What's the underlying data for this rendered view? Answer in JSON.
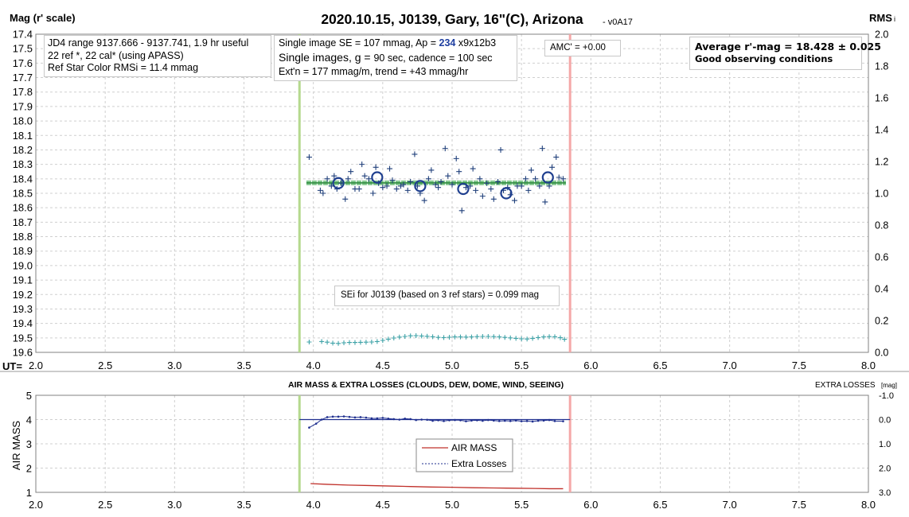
{
  "header": {
    "title": "2020.10.15, J0139, Gary, 16\"(C), Arizona",
    "version": "- v0A17",
    "left_axis_label": "Mag (r' scale)",
    "right_axis_label": "RMS",
    "right_axis_label_sub": "i"
  },
  "info_left": {
    "line1": "JD4 range 9137.666 - 9137.741, 1.9 hr useful",
    "line2": "22 ref *, 22 cal* (using APASS)",
    "line3": "Ref Star Color RMSi = 11.4 mmag"
  },
  "info_center": {
    "line1_pre": "Single image SE = 107 mmag, Ap = ",
    "line1_ap": "234",
    "line1_post": " x9x12b3",
    "line2_pre": "Single images, g = ",
    "line2_post": "90 sec, cadence = 100 sec",
    "line3": "Ext'n = 177 mmag/m, trend = +43 mmag/hr"
  },
  "amc_label": "AMC' = +0.00",
  "average": {
    "line1": "Average r'-mag =  18.428 ± 0.025",
    "line2": "Good observing conditions"
  },
  "sei_label": "SEi for J0139 (based on 3 ref stars) = 0.099 mag",
  "ut_label": "UT=",
  "lower": {
    "title": "AIR MASS & EXTRA LOSSES (CLOUDS, DEW, DOME, WIND, SEEING)",
    "left_label": "AIR MASS",
    "right_label": "EXTRA LOSSES",
    "right_label_unit": "[mag]",
    "legend": [
      "AIR MASS",
      "Extra Losses"
    ]
  },
  "chart_data": [
    {
      "type": "scatter",
      "name": "upper-light-curve",
      "x_range": [
        2.0,
        8.0
      ],
      "x_ticks": [
        "2.0",
        "2.5",
        "3.0",
        "3.5",
        "4.0",
        "4.5",
        "5.0",
        "5.5",
        "6.0",
        "6.5",
        "7.0",
        "7.5",
        "8.0"
      ],
      "y_range": [
        17.4,
        19.6
      ],
      "y_reversed": true,
      "y_ticks": [
        "17.4",
        "17.5",
        "17.6",
        "17.7",
        "17.8",
        "17.9",
        "18.0",
        "18.1",
        "18.2",
        "18.3",
        "18.4",
        "18.5",
        "18.6",
        "18.7",
        "18.8",
        "18.9",
        "19.0",
        "19.1",
        "19.2",
        "19.3",
        "19.4",
        "19.5",
        "19.6"
      ],
      "y2_range": [
        0.0,
        2.0
      ],
      "y2_ticks": [
        "0.0",
        "0.2",
        "0.4",
        "0.6",
        "0.8",
        "1.0",
        "1.2",
        "1.4",
        "1.6",
        "1.8",
        "2.0"
      ],
      "grid": true,
      "vertical_markers": [
        {
          "x": 3.9,
          "color": "#b5d98e"
        },
        {
          "x": 5.85,
          "color": "#f4a8a8"
        }
      ],
      "average_mag": 18.428,
      "average_line_x": [
        3.95,
        5.82
      ],
      "single_images": {
        "x": [
          3.97,
          4.05,
          4.07,
          4.1,
          4.13,
          4.15,
          4.17,
          4.2,
          4.23,
          4.25,
          4.27,
          4.3,
          4.33,
          4.35,
          4.37,
          4.4,
          4.43,
          4.45,
          4.47,
          4.5,
          4.53,
          4.55,
          4.57,
          4.6,
          4.63,
          4.65,
          4.68,
          4.7,
          4.73,
          4.75,
          4.77,
          4.8,
          4.83,
          4.85,
          4.88,
          4.9,
          4.92,
          4.95,
          4.97,
          5.0,
          5.03,
          5.05,
          5.07,
          5.1,
          5.13,
          5.15,
          5.17,
          5.2,
          5.22,
          5.25,
          5.28,
          5.3,
          5.33,
          5.35,
          5.37,
          5.4,
          5.42,
          5.45,
          5.47,
          5.5,
          5.53,
          5.55,
          5.57,
          5.6,
          5.63,
          5.65,
          5.67,
          5.7,
          5.72,
          5.75,
          5.77,
          5.8
        ],
        "y": [
          18.25,
          18.48,
          18.5,
          18.4,
          18.45,
          18.38,
          18.47,
          18.43,
          18.54,
          18.4,
          18.35,
          18.47,
          18.47,
          18.3,
          18.38,
          18.4,
          18.5,
          18.32,
          18.43,
          18.46,
          18.45,
          18.33,
          18.41,
          18.47,
          18.45,
          18.44,
          18.48,
          18.42,
          18.23,
          18.45,
          18.5,
          18.55,
          18.4,
          18.34,
          18.44,
          18.46,
          18.42,
          18.19,
          18.38,
          18.44,
          18.26,
          18.35,
          18.62,
          18.46,
          18.45,
          18.33,
          18.48,
          18.4,
          18.52,
          18.43,
          18.47,
          18.54,
          18.42,
          18.2,
          18.48,
          18.46,
          18.51,
          18.55,
          18.45,
          18.45,
          18.4,
          18.48,
          18.34,
          18.4,
          18.45,
          18.19,
          18.56,
          18.45,
          18.32,
          18.25,
          18.39,
          18.4
        ]
      },
      "binned_means": {
        "x": [
          4.18,
          4.46,
          4.77,
          5.08,
          5.39,
          5.69
        ],
        "y": [
          18.43,
          18.39,
          18.45,
          18.47,
          18.5,
          18.39
        ]
      },
      "rms_series": {
        "x": [
          3.97,
          4.06,
          4.1,
          4.14,
          4.18,
          4.22,
          4.26,
          4.3,
          4.34,
          4.38,
          4.42,
          4.46,
          4.5,
          4.54,
          4.58,
          4.62,
          4.66,
          4.7,
          4.74,
          4.78,
          4.82,
          4.86,
          4.9,
          4.94,
          4.98,
          5.02,
          5.06,
          5.1,
          5.14,
          5.18,
          5.22,
          5.26,
          5.3,
          5.34,
          5.38,
          5.42,
          5.46,
          5.5,
          5.54,
          5.58,
          5.62,
          5.66,
          5.7,
          5.74,
          5.78,
          5.81
        ],
        "y": [
          0.065,
          0.068,
          0.064,
          0.058,
          0.056,
          0.06,
          0.062,
          0.062,
          0.063,
          0.064,
          0.065,
          0.068,
          0.075,
          0.083,
          0.09,
          0.096,
          0.1,
          0.104,
          0.105,
          0.103,
          0.101,
          0.098,
          0.094,
          0.093,
          0.095,
          0.097,
          0.097,
          0.096,
          0.097,
          0.099,
          0.1,
          0.1,
          0.099,
          0.097,
          0.094,
          0.091,
          0.088,
          0.085,
          0.084,
          0.088,
          0.093,
          0.097,
          0.099,
          0.098,
          0.092,
          0.082
        ]
      }
    },
    {
      "type": "line",
      "name": "lower-air-mass-extra-losses",
      "x_range": [
        2.0,
        8.0
      ],
      "x_ticks": [
        "2.0",
        "2.5",
        "3.0",
        "3.5",
        "4.0",
        "4.5",
        "5.0",
        "5.5",
        "6.0",
        "6.5",
        "7.0",
        "7.5",
        "8.0"
      ],
      "y_range": [
        1,
        5
      ],
      "y_ticks": [
        "1",
        "2",
        "3",
        "4",
        "5"
      ],
      "y2_range": [
        -1.0,
        3.0
      ],
      "y2_reversed": true,
      "y2_ticks": [
        "-1.0",
        "0.0",
        "1.0",
        "2.0",
        "3.0"
      ],
      "grid": true,
      "legend_position": "center",
      "zero_line_x": [
        3.9,
        5.85
      ],
      "series": [
        {
          "name": "AIR MASS",
          "color": "#c0302a",
          "x": [
            3.98,
            4.1,
            4.25,
            4.4,
            4.55,
            4.7,
            4.85,
            5.0,
            5.15,
            5.3,
            5.45,
            5.6,
            5.7,
            5.8
          ],
          "y": [
            1.36,
            1.33,
            1.3,
            1.28,
            1.26,
            1.24,
            1.22,
            1.21,
            1.19,
            1.18,
            1.17,
            1.16,
            1.15,
            1.15
          ]
        },
        {
          "name": "Extra Losses",
          "color": "#1f2f8f",
          "x": [
            3.97,
            4.02,
            4.06,
            4.1,
            4.14,
            4.18,
            4.22,
            4.26,
            4.3,
            4.34,
            4.38,
            4.42,
            4.46,
            4.5,
            4.54,
            4.58,
            4.62,
            4.66,
            4.7,
            4.74,
            4.78,
            4.82,
            4.86,
            4.9,
            4.94,
            4.98,
            5.02,
            5.06,
            5.1,
            5.14,
            5.18,
            5.22,
            5.26,
            5.3,
            5.34,
            5.38,
            5.42,
            5.46,
            5.5,
            5.54,
            5.58,
            5.62,
            5.66,
            5.7,
            5.74,
            5.8
          ],
          "y": [
            0.33,
            0.17,
            0.0,
            -0.1,
            -0.12,
            -0.12,
            -0.13,
            -0.11,
            -0.09,
            -0.1,
            -0.08,
            -0.05,
            -0.05,
            -0.07,
            -0.04,
            -0.02,
            0.0,
            -0.04,
            -0.02,
            0.02,
            0.0,
            0.01,
            0.05,
            0.03,
            0.06,
            0.03,
            0.02,
            0.03,
            0.07,
            0.04,
            0.03,
            0.05,
            0.02,
            0.04,
            0.06,
            0.05,
            0.06,
            0.04,
            0.07,
            0.06,
            0.08,
            0.05,
            0.04,
            0.02,
            0.06,
            0.07
          ]
        }
      ]
    }
  ]
}
